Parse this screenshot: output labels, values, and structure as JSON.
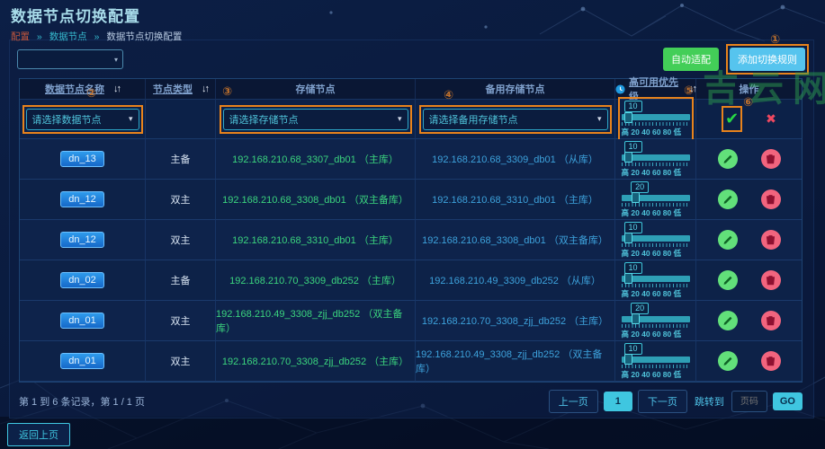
{
  "header": {
    "title": "数据节点切换配置",
    "breadcrumb": {
      "items": [
        "配置",
        "数据节点",
        "数据节点切换配置"
      ],
      "separator": "»"
    }
  },
  "watermark": "吉云网",
  "toolbar": {
    "auto_adapt_label": "自动适配",
    "add_rule_label": "添加切换规则"
  },
  "annotations": {
    "n1": "①",
    "n2": "②",
    "n3": "③",
    "n4": "④",
    "n5": "⑤",
    "n6": "⑥"
  },
  "icons": {
    "sort": "↓↑",
    "caret": "▾",
    "check": "✔",
    "cross": "✖"
  },
  "colors": {
    "accent_cyan": "#3fc6e0",
    "accent_orange": "#e8831c",
    "green_text": "#3bd47e",
    "blue_text": "#3da2dc",
    "btn_green": "#43ce58",
    "btn_blue": "#56c4ee",
    "edit_btn": "#62e07a",
    "delete_btn": "#f2647e"
  },
  "table": {
    "headers": {
      "name": "数据节点名称",
      "type": "节点类型",
      "storage": "存储节点",
      "backup": "备用存储节点",
      "priority": "高可用优先级",
      "actions": "操作"
    },
    "filters": {
      "name_placeholder": "请选择数据节点",
      "storage_placeholder": "请选择存储节点",
      "backup_placeholder": "请选择备用存储节点",
      "priority_value": "10"
    },
    "slider_scale": "高 20 40 60 80 低",
    "rows": [
      {
        "name": "dn_13",
        "type": "主备",
        "storage": "192.168.210.68_3307_db01 （主库）",
        "backup": "192.168.210.68_3309_db01 （从库）",
        "priority": "10"
      },
      {
        "name": "dn_12",
        "type": "双主",
        "storage": "192.168.210.68_3308_db01 （双主备库）",
        "backup": "192.168.210.68_3310_db01 （主库）",
        "priority": "20"
      },
      {
        "name": "dn_12",
        "type": "双主",
        "storage": "192.168.210.68_3310_db01 （主库）",
        "backup": "192.168.210.68_3308_db01 （双主备库）",
        "priority": "10"
      },
      {
        "name": "dn_02",
        "type": "主备",
        "storage": "192.168.210.70_3309_db252 （主库）",
        "backup": "192.168.210.49_3309_db252 （从库）",
        "priority": "10"
      },
      {
        "name": "dn_01",
        "type": "双主",
        "storage": "192.168.210.49_3308_zjj_db252 （双主备库）",
        "backup": "192.168.210.70_3308_zjj_db252 （主库）",
        "priority": "20"
      },
      {
        "name": "dn_01",
        "type": "双主",
        "storage": "192.168.210.70_3308_zjj_db252 （主库）",
        "backup": "192.168.210.49_3308_zjj_db252 （双主备库）",
        "priority": "10"
      }
    ]
  },
  "pagination": {
    "summary": "第 1 到 6 条记录，第 1 / 1 页",
    "prev": "上一页",
    "current": "1",
    "next": "下一页",
    "jump_label": "跳转到",
    "jump_placeholder": "页码",
    "go": "GO"
  },
  "footer": {
    "back": "返回上页"
  }
}
